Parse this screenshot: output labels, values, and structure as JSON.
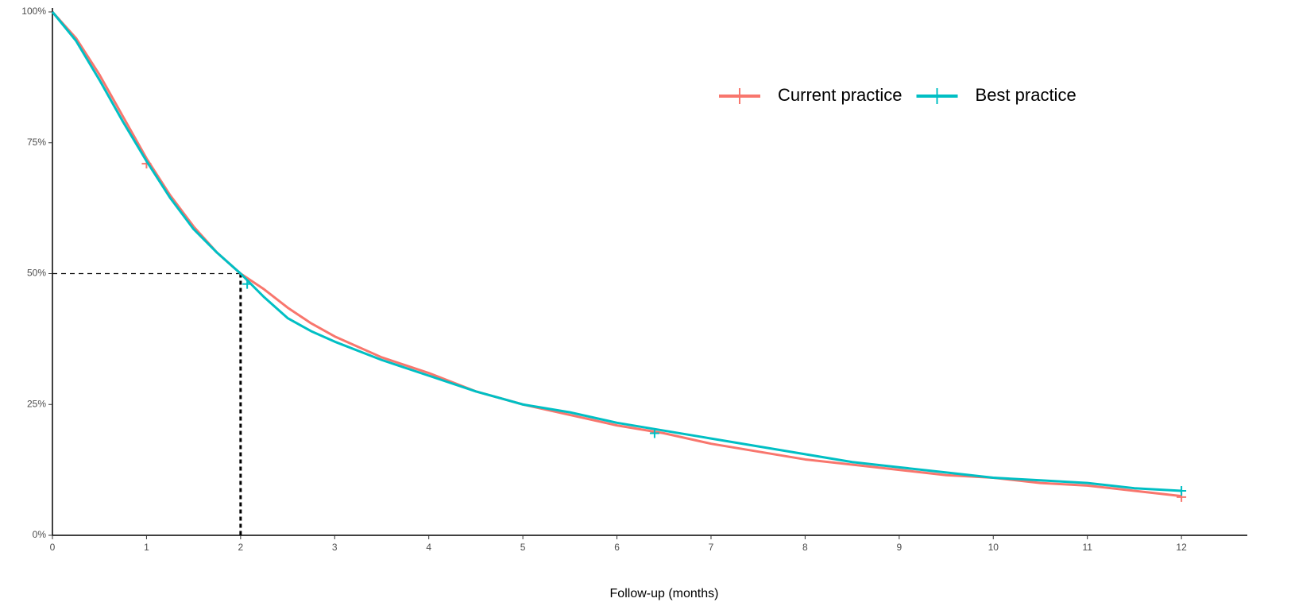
{
  "chart_data": {
    "type": "line",
    "xlabel": "Follow-up (months)",
    "xlim": [
      0,
      12.7
    ],
    "ylim": [
      0,
      100
    ],
    "xticks": [
      0,
      1,
      2,
      3,
      4,
      5,
      6,
      7,
      8,
      9,
      10,
      11,
      12
    ],
    "yticks": [
      {
        "value": 0,
        "label": "0%"
      },
      {
        "value": 25,
        "label": "25%"
      },
      {
        "value": 50,
        "label": "50%"
      },
      {
        "value": 75,
        "label": "75%"
      },
      {
        "value": 100,
        "label": "100%"
      }
    ],
    "legend": "top-right",
    "reference": {
      "x": 2,
      "y": 50
    },
    "series": [
      {
        "name": "Current practice",
        "color": "#F8766D",
        "x": [
          0,
          0.25,
          0.5,
          0.75,
          1,
          1.25,
          1.5,
          1.75,
          2,
          2.25,
          2.5,
          2.75,
          3,
          3.5,
          4,
          4.5,
          5,
          5.5,
          6,
          6.5,
          7,
          7.5,
          8,
          8.5,
          9,
          9.5,
          10,
          10.5,
          11,
          11.5,
          12
        ],
        "values": [
          100,
          95,
          88,
          80,
          72,
          65,
          59,
          54,
          50,
          47,
          43.5,
          40.5,
          38,
          34,
          31,
          27.5,
          25,
          23,
          21,
          19.5,
          17.5,
          16,
          14.5,
          13.5,
          12.5,
          11.5,
          11,
          10,
          9.5,
          8.5,
          7.5
        ],
        "censored": {
          "x": [
            1.0,
            12
          ],
          "values": [
            71,
            7.3
          ]
        }
      },
      {
        "name": "Best practice",
        "color": "#00BFC4",
        "x": [
          0,
          0.25,
          0.5,
          0.75,
          1,
          1.25,
          1.5,
          1.75,
          2,
          2.25,
          2.5,
          2.75,
          3,
          3.5,
          4,
          4.5,
          5,
          5.5,
          6,
          6.5,
          7,
          7.5,
          8,
          8.5,
          9,
          9.5,
          10,
          10.5,
          11,
          11.5,
          12
        ],
        "values": [
          100,
          94.5,
          87,
          79,
          71.5,
          64.5,
          58.5,
          54,
          50,
          45.5,
          41.5,
          39,
          37,
          33.5,
          30.5,
          27.5,
          25,
          23.5,
          21.5,
          20,
          18.5,
          17,
          15.5,
          14,
          13,
          12,
          11,
          10.5,
          10,
          9,
          8.5
        ],
        "censored": {
          "x": [
            2.07,
            6.4,
            12
          ],
          "values": [
            48,
            19.5,
            8.5
          ]
        }
      }
    ]
  }
}
